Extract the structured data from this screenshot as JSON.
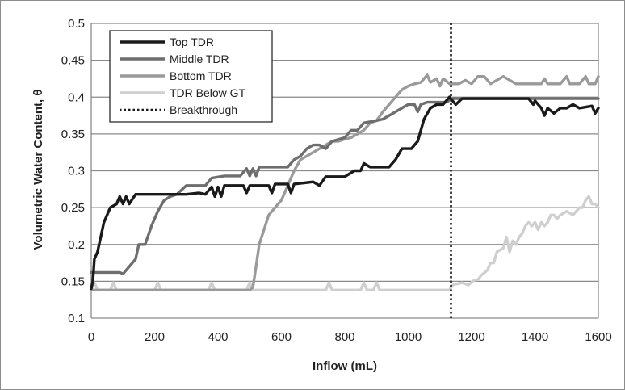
{
  "chart_data": {
    "type": "line",
    "title": "",
    "xlabel": "Inflow (mL)",
    "ylabel": "Volumetric Water Content, θ",
    "xlim": [
      0,
      1600
    ],
    "ylim": [
      0.1,
      0.5
    ],
    "x_ticks": [
      "0",
      "200",
      "400",
      "600",
      "800",
      "1000",
      "1200",
      "1400",
      "1600"
    ],
    "y_ticks": [
      "0.1",
      "0.15",
      "0.2",
      "0.25",
      "0.3",
      "0.35",
      "0.4",
      "0.45",
      "0.5"
    ],
    "grid": "horizontal",
    "legend_position": "top-left",
    "series": [
      {
        "name": "Top TDR",
        "color": "#1a1a1a",
        "style": "solid",
        "points": [
          [
            0,
            0.14
          ],
          [
            5,
            0.15
          ],
          [
            10,
            0.18
          ],
          [
            20,
            0.19
          ],
          [
            30,
            0.21
          ],
          [
            40,
            0.23
          ],
          [
            60,
            0.25
          ],
          [
            80,
            0.255
          ],
          [
            90,
            0.265
          ],
          [
            100,
            0.255
          ],
          [
            110,
            0.265
          ],
          [
            120,
            0.255
          ],
          [
            140,
            0.268
          ],
          [
            200,
            0.268
          ],
          [
            300,
            0.268
          ],
          [
            340,
            0.27
          ],
          [
            360,
            0.268
          ],
          [
            380,
            0.278
          ],
          [
            390,
            0.265
          ],
          [
            400,
            0.278
          ],
          [
            410,
            0.265
          ],
          [
            420,
            0.28
          ],
          [
            480,
            0.28
          ],
          [
            490,
            0.27
          ],
          [
            500,
            0.28
          ],
          [
            560,
            0.28
          ],
          [
            570,
            0.27
          ],
          [
            580,
            0.282
          ],
          [
            620,
            0.282
          ],
          [
            630,
            0.27
          ],
          [
            640,
            0.282
          ],
          [
            700,
            0.285
          ],
          [
            720,
            0.28
          ],
          [
            740,
            0.292
          ],
          [
            800,
            0.292
          ],
          [
            830,
            0.3
          ],
          [
            850,
            0.3
          ],
          [
            860,
            0.31
          ],
          [
            880,
            0.305
          ],
          [
            940,
            0.305
          ],
          [
            960,
            0.315
          ],
          [
            980,
            0.33
          ],
          [
            1010,
            0.33
          ],
          [
            1030,
            0.34
          ],
          [
            1050,
            0.37
          ],
          [
            1070,
            0.385
          ],
          [
            1090,
            0.39
          ],
          [
            1110,
            0.39
          ],
          [
            1130,
            0.4
          ],
          [
            1150,
            0.39
          ],
          [
            1170,
            0.398
          ],
          [
            1200,
            0.398
          ],
          [
            1380,
            0.398
          ],
          [
            1395,
            0.39
          ],
          [
            1400,
            0.395
          ],
          [
            1420,
            0.385
          ],
          [
            1430,
            0.375
          ],
          [
            1440,
            0.385
          ],
          [
            1460,
            0.378
          ],
          [
            1480,
            0.385
          ],
          [
            1500,
            0.385
          ],
          [
            1520,
            0.39
          ],
          [
            1540,
            0.385
          ],
          [
            1580,
            0.388
          ],
          [
            1590,
            0.378
          ],
          [
            1600,
            0.385
          ]
        ]
      },
      {
        "name": "Middle TDR",
        "color": "#6e6e6e",
        "style": "solid",
        "points": [
          [
            0,
            0.162
          ],
          [
            90,
            0.162
          ],
          [
            100,
            0.16
          ],
          [
            120,
            0.17
          ],
          [
            140,
            0.18
          ],
          [
            150,
            0.2
          ],
          [
            170,
            0.2
          ],
          [
            190,
            0.225
          ],
          [
            210,
            0.245
          ],
          [
            230,
            0.26
          ],
          [
            250,
            0.265
          ],
          [
            270,
            0.268
          ],
          [
            300,
            0.28
          ],
          [
            360,
            0.28
          ],
          [
            380,
            0.29
          ],
          [
            420,
            0.293
          ],
          [
            470,
            0.293
          ],
          [
            490,
            0.303
          ],
          [
            500,
            0.293
          ],
          [
            510,
            0.303
          ],
          [
            520,
            0.293
          ],
          [
            530,
            0.305
          ],
          [
            620,
            0.305
          ],
          [
            640,
            0.315
          ],
          [
            660,
            0.32
          ],
          [
            680,
            0.33
          ],
          [
            700,
            0.335
          ],
          [
            720,
            0.335
          ],
          [
            740,
            0.33
          ],
          [
            760,
            0.34
          ],
          [
            800,
            0.345
          ],
          [
            820,
            0.355
          ],
          [
            840,
            0.355
          ],
          [
            860,
            0.365
          ],
          [
            900,
            0.368
          ],
          [
            920,
            0.37
          ],
          [
            940,
            0.375
          ],
          [
            960,
            0.38
          ],
          [
            980,
            0.385
          ],
          [
            1000,
            0.39
          ],
          [
            1020,
            0.39
          ],
          [
            1030,
            0.38
          ],
          [
            1040,
            0.39
          ],
          [
            1060,
            0.393
          ],
          [
            1120,
            0.393
          ],
          [
            1140,
            0.398
          ],
          [
            1400,
            0.398
          ],
          [
            1600,
            0.398
          ]
        ]
      },
      {
        "name": "Bottom TDR",
        "color": "#9a9a9a",
        "style": "solid",
        "points": [
          [
            0,
            0.138
          ],
          [
            500,
            0.138
          ],
          [
            510,
            0.142
          ],
          [
            520,
            0.17
          ],
          [
            530,
            0.2
          ],
          [
            545,
            0.22
          ],
          [
            560,
            0.24
          ],
          [
            580,
            0.25
          ],
          [
            600,
            0.26
          ],
          [
            620,
            0.28
          ],
          [
            640,
            0.3
          ],
          [
            660,
            0.315
          ],
          [
            680,
            0.32
          ],
          [
            700,
            0.325
          ],
          [
            720,
            0.33
          ],
          [
            740,
            0.335
          ],
          [
            760,
            0.34
          ],
          [
            780,
            0.34
          ],
          [
            800,
            0.343
          ],
          [
            820,
            0.345
          ],
          [
            840,
            0.35
          ],
          [
            860,
            0.355
          ],
          [
            880,
            0.365
          ],
          [
            900,
            0.368
          ],
          [
            920,
            0.38
          ],
          [
            940,
            0.39
          ],
          [
            960,
            0.4
          ],
          [
            980,
            0.41
          ],
          [
            1000,
            0.415
          ],
          [
            1020,
            0.418
          ],
          [
            1040,
            0.42
          ],
          [
            1060,
            0.43
          ],
          [
            1070,
            0.42
          ],
          [
            1090,
            0.425
          ],
          [
            1100,
            0.415
          ],
          [
            1110,
            0.425
          ],
          [
            1120,
            0.422
          ],
          [
            1130,
            0.418
          ],
          [
            1160,
            0.418
          ],
          [
            1180,
            0.423
          ],
          [
            1200,
            0.418
          ],
          [
            1220,
            0.428
          ],
          [
            1240,
            0.428
          ],
          [
            1260,
            0.418
          ],
          [
            1300,
            0.428
          ],
          [
            1340,
            0.418
          ],
          [
            1420,
            0.418
          ],
          [
            1430,
            0.425
          ],
          [
            1440,
            0.418
          ],
          [
            1480,
            0.418
          ],
          [
            1500,
            0.428
          ],
          [
            1510,
            0.418
          ],
          [
            1540,
            0.418
          ],
          [
            1560,
            0.428
          ],
          [
            1570,
            0.418
          ],
          [
            1590,
            0.418
          ],
          [
            1600,
            0.428
          ]
        ]
      },
      {
        "name": "TDR Below GT",
        "color": "#cfcfcf",
        "style": "solid",
        "points": [
          [
            0,
            0.138
          ],
          [
            10,
            0.148
          ],
          [
            20,
            0.138
          ],
          [
            60,
            0.138
          ],
          [
            70,
            0.148
          ],
          [
            80,
            0.138
          ],
          [
            200,
            0.138
          ],
          [
            210,
            0.148
          ],
          [
            220,
            0.138
          ],
          [
            370,
            0.138
          ],
          [
            380,
            0.148
          ],
          [
            390,
            0.138
          ],
          [
            490,
            0.138
          ],
          [
            500,
            0.148
          ],
          [
            510,
            0.138
          ],
          [
            740,
            0.138
          ],
          [
            750,
            0.148
          ],
          [
            760,
            0.138
          ],
          [
            850,
            0.138
          ],
          [
            860,
            0.148
          ],
          [
            870,
            0.138
          ],
          [
            890,
            0.138
          ],
          [
            900,
            0.148
          ],
          [
            910,
            0.138
          ],
          [
            1130,
            0.138
          ],
          [
            1140,
            0.145
          ],
          [
            1170,
            0.148
          ],
          [
            1190,
            0.145
          ],
          [
            1210,
            0.152
          ],
          [
            1220,
            0.152
          ],
          [
            1230,
            0.158
          ],
          [
            1250,
            0.165
          ],
          [
            1260,
            0.175
          ],
          [
            1270,
            0.175
          ],
          [
            1280,
            0.19
          ],
          [
            1300,
            0.195
          ],
          [
            1310,
            0.21
          ],
          [
            1320,
            0.19
          ],
          [
            1330,
            0.205
          ],
          [
            1340,
            0.2
          ],
          [
            1350,
            0.21
          ],
          [
            1360,
            0.215
          ],
          [
            1370,
            0.225
          ],
          [
            1380,
            0.23
          ],
          [
            1390,
            0.225
          ],
          [
            1400,
            0.23
          ],
          [
            1410,
            0.22
          ],
          [
            1420,
            0.23
          ],
          [
            1430,
            0.225
          ],
          [
            1440,
            0.23
          ],
          [
            1450,
            0.24
          ],
          [
            1460,
            0.24
          ],
          [
            1470,
            0.235
          ],
          [
            1480,
            0.24
          ],
          [
            1500,
            0.245
          ],
          [
            1520,
            0.24
          ],
          [
            1540,
            0.25
          ],
          [
            1550,
            0.25
          ],
          [
            1560,
            0.26
          ],
          [
            1570,
            0.265
          ],
          [
            1580,
            0.255
          ],
          [
            1590,
            0.255
          ],
          [
            1600,
            0.25
          ]
        ]
      },
      {
        "name": "Breakthrough",
        "color": "#1a1a1a",
        "style": "dotted",
        "points": [
          [
            1135,
            0.1
          ],
          [
            1135,
            0.5
          ]
        ]
      }
    ]
  }
}
